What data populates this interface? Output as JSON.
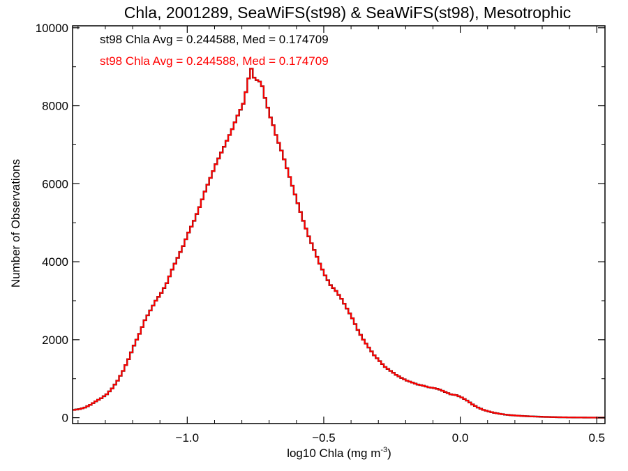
{
  "chart_data": {
    "type": "bar",
    "title": "Chla, 2001289, SeaWiFS(st98) & SeaWiFS(st98), Mesotrophic",
    "xlabel": "log10 Chla (mg m",
    "xlabel_sup": "-3",
    "xlabel_end": ")",
    "ylabel": "Number of Observations",
    "xlim": [
      -1.42,
      0.53
    ],
    "ylim": [
      -150,
      10050
    ],
    "xticks": [
      -1.0,
      -0.5,
      0.0,
      0.5
    ],
    "xtick_labels": [
      "−1.0",
      "−0.5",
      "0.0",
      "0.5"
    ],
    "yticks": [
      0,
      2000,
      4000,
      6000,
      8000,
      10000
    ],
    "ytick_labels": [
      "0",
      "2000",
      "4000",
      "6000",
      "8000",
      "10000"
    ],
    "grid": false,
    "annotations": [
      {
        "text": "st98 Chla Avg = 0.244588, Med = 0.174709",
        "color": "#000000"
      },
      {
        "text": "st98 Chla Avg = 0.244588, Med = 0.174709",
        "color": "#ff0000"
      }
    ],
    "series": [
      {
        "color": "#000000",
        "step_width": 0.01,
        "points": [
          [
            -1.42,
            200
          ],
          [
            -1.4,
            220
          ],
          [
            -1.38,
            260
          ],
          [
            -1.36,
            330
          ],
          [
            -1.34,
            420
          ],
          [
            -1.32,
            500
          ],
          [
            -1.3,
            600
          ],
          [
            -1.28,
            750
          ],
          [
            -1.26,
            950
          ],
          [
            -1.24,
            1200
          ],
          [
            -1.22,
            1500
          ],
          [
            -1.2,
            1850
          ],
          [
            -1.18,
            2150
          ],
          [
            -1.16,
            2500
          ],
          [
            -1.14,
            2750
          ],
          [
            -1.12,
            3000
          ],
          [
            -1.1,
            3200
          ],
          [
            -1.08,
            3450
          ],
          [
            -1.06,
            3800
          ],
          [
            -1.04,
            4100
          ],
          [
            -1.02,
            4400
          ],
          [
            -1.0,
            4750
          ],
          [
            -0.98,
            5050
          ],
          [
            -0.96,
            5400
          ],
          [
            -0.94,
            5800
          ],
          [
            -0.92,
            6150
          ],
          [
            -0.9,
            6500
          ],
          [
            -0.88,
            6800
          ],
          [
            -0.86,
            7100
          ],
          [
            -0.84,
            7400
          ],
          [
            -0.82,
            7750
          ],
          [
            -0.8,
            8050
          ],
          [
            -0.79,
            8350
          ],
          [
            -0.78,
            8700
          ],
          [
            -0.77,
            8950
          ],
          [
            -0.76,
            8720
          ],
          [
            -0.75,
            8660
          ],
          [
            -0.74,
            8620
          ],
          [
            -0.73,
            8500
          ],
          [
            -0.72,
            8200
          ],
          [
            -0.71,
            7950
          ],
          [
            -0.7,
            7700
          ],
          [
            -0.69,
            7500
          ],
          [
            -0.68,
            7250
          ],
          [
            -0.66,
            6850
          ],
          [
            -0.64,
            6400
          ],
          [
            -0.62,
            5950
          ],
          [
            -0.6,
            5500
          ],
          [
            -0.58,
            5050
          ],
          [
            -0.56,
            4650
          ],
          [
            -0.54,
            4300
          ],
          [
            -0.52,
            3950
          ],
          [
            -0.5,
            3650
          ],
          [
            -0.48,
            3400
          ],
          [
            -0.46,
            3250
          ],
          [
            -0.44,
            3050
          ],
          [
            -0.42,
            2800
          ],
          [
            -0.4,
            2550
          ],
          [
            -0.38,
            2250
          ],
          [
            -0.36,
            2000
          ],
          [
            -0.34,
            1800
          ],
          [
            -0.32,
            1600
          ],
          [
            -0.3,
            1450
          ],
          [
            -0.28,
            1300
          ],
          [
            -0.26,
            1200
          ],
          [
            -0.24,
            1100
          ],
          [
            -0.22,
            1020
          ],
          [
            -0.2,
            950
          ],
          [
            -0.18,
            900
          ],
          [
            -0.16,
            850
          ],
          [
            -0.14,
            820
          ],
          [
            -0.12,
            780
          ],
          [
            -0.1,
            760
          ],
          [
            -0.08,
            720
          ],
          [
            -0.06,
            660
          ],
          [
            -0.04,
            600
          ],
          [
            -0.02,
            580
          ],
          [
            0.0,
            520
          ],
          [
            0.02,
            440
          ],
          [
            0.04,
            340
          ],
          [
            0.06,
            260
          ],
          [
            0.08,
            200
          ],
          [
            0.1,
            160
          ],
          [
            0.12,
            125
          ],
          [
            0.14,
            100
          ],
          [
            0.16,
            80
          ],
          [
            0.18,
            65
          ],
          [
            0.2,
            55
          ],
          [
            0.22,
            45
          ],
          [
            0.24,
            38
          ],
          [
            0.26,
            32
          ],
          [
            0.28,
            27
          ],
          [
            0.3,
            22
          ],
          [
            0.32,
            18
          ],
          [
            0.34,
            14
          ],
          [
            0.36,
            11
          ],
          [
            0.38,
            9
          ],
          [
            0.4,
            7
          ],
          [
            0.42,
            6
          ],
          [
            0.44,
            5
          ],
          [
            0.46,
            4
          ],
          [
            0.48,
            3
          ],
          [
            0.5,
            2
          ],
          [
            0.52,
            2
          ]
        ]
      },
      {
        "color": "#ff0000",
        "step_width": 0.01,
        "points": [
          [
            -1.42,
            200
          ],
          [
            -1.4,
            220
          ],
          [
            -1.38,
            260
          ],
          [
            -1.36,
            330
          ],
          [
            -1.34,
            420
          ],
          [
            -1.32,
            500
          ],
          [
            -1.3,
            600
          ],
          [
            -1.28,
            750
          ],
          [
            -1.26,
            950
          ],
          [
            -1.24,
            1200
          ],
          [
            -1.22,
            1500
          ],
          [
            -1.2,
            1850
          ],
          [
            -1.18,
            2150
          ],
          [
            -1.16,
            2500
          ],
          [
            -1.14,
            2750
          ],
          [
            -1.12,
            3000
          ],
          [
            -1.1,
            3200
          ],
          [
            -1.08,
            3450
          ],
          [
            -1.06,
            3800
          ],
          [
            -1.04,
            4100
          ],
          [
            -1.02,
            4400
          ],
          [
            -1.0,
            4750
          ],
          [
            -0.98,
            5050
          ],
          [
            -0.96,
            5400
          ],
          [
            -0.94,
            5800
          ],
          [
            -0.92,
            6150
          ],
          [
            -0.9,
            6500
          ],
          [
            -0.88,
            6800
          ],
          [
            -0.86,
            7100
          ],
          [
            -0.84,
            7400
          ],
          [
            -0.82,
            7750
          ],
          [
            -0.8,
            8050
          ],
          [
            -0.79,
            8350
          ],
          [
            -0.78,
            8700
          ],
          [
            -0.77,
            8950
          ],
          [
            -0.76,
            8720
          ],
          [
            -0.75,
            8660
          ],
          [
            -0.74,
            8620
          ],
          [
            -0.73,
            8500
          ],
          [
            -0.72,
            8200
          ],
          [
            -0.71,
            7950
          ],
          [
            -0.7,
            7700
          ],
          [
            -0.69,
            7500
          ],
          [
            -0.68,
            7250
          ],
          [
            -0.66,
            6850
          ],
          [
            -0.64,
            6400
          ],
          [
            -0.62,
            5950
          ],
          [
            -0.6,
            5500
          ],
          [
            -0.58,
            5050
          ],
          [
            -0.56,
            4650
          ],
          [
            -0.54,
            4300
          ],
          [
            -0.52,
            3950
          ],
          [
            -0.5,
            3650
          ],
          [
            -0.48,
            3400
          ],
          [
            -0.46,
            3250
          ],
          [
            -0.44,
            3050
          ],
          [
            -0.42,
            2800
          ],
          [
            -0.4,
            2550
          ],
          [
            -0.38,
            2250
          ],
          [
            -0.36,
            2000
          ],
          [
            -0.34,
            1800
          ],
          [
            -0.32,
            1600
          ],
          [
            -0.3,
            1450
          ],
          [
            -0.28,
            1300
          ],
          [
            -0.26,
            1200
          ],
          [
            -0.24,
            1100
          ],
          [
            -0.22,
            1020
          ],
          [
            -0.2,
            950
          ],
          [
            -0.18,
            900
          ],
          [
            -0.16,
            850
          ],
          [
            -0.14,
            820
          ],
          [
            -0.12,
            780
          ],
          [
            -0.1,
            760
          ],
          [
            -0.08,
            720
          ],
          [
            -0.06,
            660
          ],
          [
            -0.04,
            600
          ],
          [
            -0.02,
            580
          ],
          [
            0.0,
            520
          ],
          [
            0.02,
            440
          ],
          [
            0.04,
            340
          ],
          [
            0.06,
            260
          ],
          [
            0.08,
            200
          ],
          [
            0.1,
            160
          ],
          [
            0.12,
            125
          ],
          [
            0.14,
            100
          ],
          [
            0.16,
            80
          ],
          [
            0.18,
            65
          ],
          [
            0.2,
            55
          ],
          [
            0.22,
            45
          ],
          [
            0.24,
            38
          ],
          [
            0.26,
            32
          ],
          [
            0.28,
            27
          ],
          [
            0.3,
            22
          ],
          [
            0.32,
            18
          ],
          [
            0.34,
            14
          ],
          [
            0.36,
            11
          ],
          [
            0.38,
            9
          ],
          [
            0.4,
            7
          ],
          [
            0.42,
            6
          ],
          [
            0.44,
            5
          ],
          [
            0.46,
            4
          ],
          [
            0.48,
            3
          ],
          [
            0.5,
            2
          ],
          [
            0.52,
            2
          ]
        ]
      }
    ]
  }
}
